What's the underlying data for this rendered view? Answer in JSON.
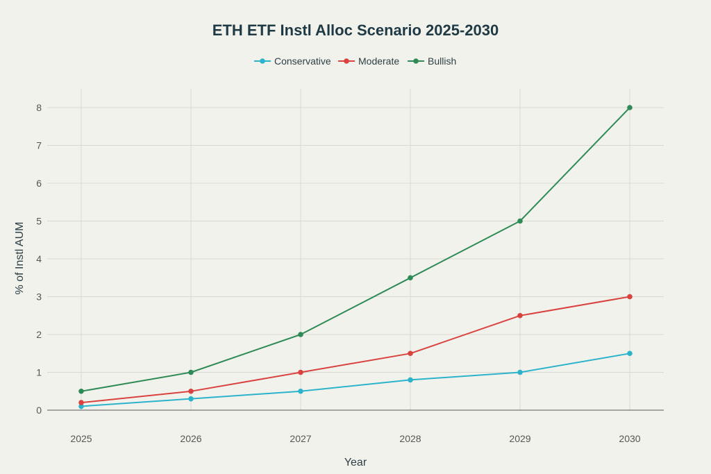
{
  "chart_data": {
    "type": "line",
    "title": "ETH ETF Instl Alloc Scenario 2025-2030",
    "xlabel": "Year",
    "ylabel": "% of Instl AUM",
    "x": [
      "2025",
      "2026",
      "2027",
      "2028",
      "2029",
      "2030"
    ],
    "y_ticks": [
      "0",
      "1",
      "2",
      "3",
      "4",
      "5",
      "6",
      "7",
      "8"
    ],
    "ylim": [
      0,
      8
    ],
    "grid": true,
    "legend_position": "top-center",
    "series": [
      {
        "name": "Conservative",
        "color": "#2bb3cc",
        "values": [
          0.1,
          0.3,
          0.5,
          0.8,
          1.0,
          1.5
        ]
      },
      {
        "name": "Moderate",
        "color": "#d9423e",
        "values": [
          0.2,
          0.5,
          1.0,
          1.5,
          2.5,
          3.0
        ]
      },
      {
        "name": "Bullish",
        "color": "#2e8b57",
        "values": [
          0.5,
          1.0,
          2.0,
          3.5,
          5.0,
          8.0
        ]
      }
    ]
  }
}
